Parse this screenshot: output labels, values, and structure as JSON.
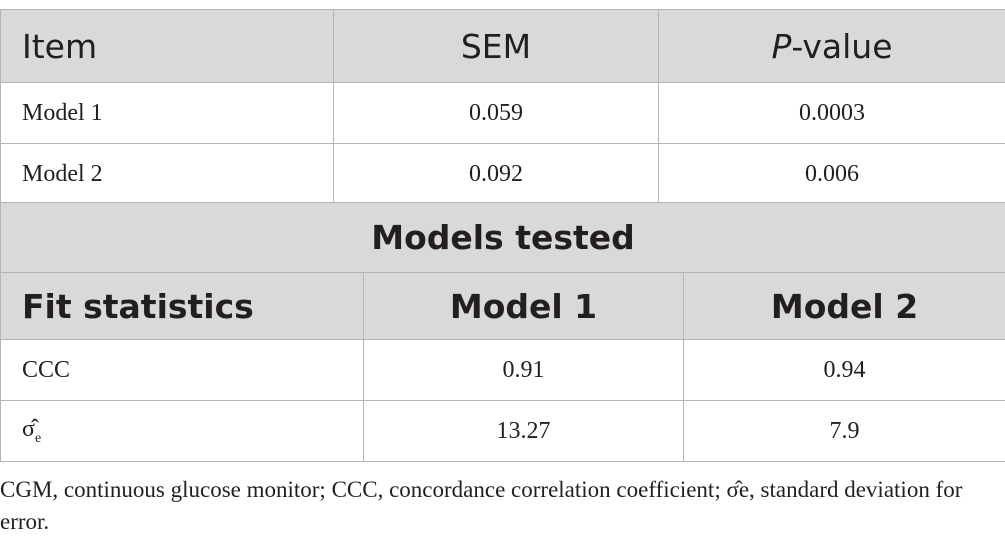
{
  "table1": {
    "headers": {
      "item": "Item",
      "sem": "SEM",
      "p_italic": "P",
      "p_rest": "-value"
    },
    "rows": [
      {
        "item": "Model 1",
        "sem": "0.059",
        "p": "0.0003"
      },
      {
        "item": "Model 2",
        "sem": "0.092",
        "p": "0.006"
      }
    ]
  },
  "table2": {
    "span_header": "Models tested",
    "headers": {
      "stat": "Fit statistics",
      "m1": "Model 1",
      "m2": "Model 2"
    },
    "rows": [
      {
        "stat": "CCC",
        "m1": "0.91",
        "m2": "0.94"
      },
      {
        "stat_main": "σ̂",
        "stat_sub": "e",
        "m1": "13.27",
        "m2": "7.9"
      }
    ]
  },
  "footnote": "CGM, continuous glucose monitor; CCC, concordance correlation coefficient; σ̂e, standard deviation for error."
}
